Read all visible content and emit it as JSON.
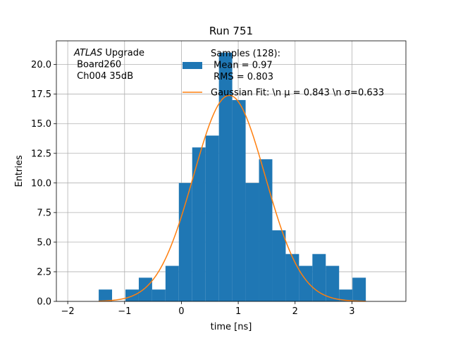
{
  "chart_data": {
    "type": "bar",
    "title": "Run 751",
    "xlabel": "time [ns]",
    "ylabel": "Entries",
    "xlim": [
      -2.2,
      3.95
    ],
    "ylim": [
      0,
      22
    ],
    "grid": true,
    "x_ticks": [
      -2,
      -1,
      0,
      1,
      2,
      3
    ],
    "x_tick_labels": [
      "−2",
      "−1",
      "0",
      "1",
      "2",
      "3"
    ],
    "y_ticks": [
      0,
      2.5,
      5,
      7.5,
      10,
      12.5,
      15,
      17.5,
      20
    ],
    "y_tick_labels": [
      "0.0",
      "2.5",
      "5.0",
      "7.5",
      "10.0",
      "12.5",
      "15.0",
      "17.5",
      "20.0"
    ],
    "histogram": {
      "color": "#1f77b4",
      "bin_edges": [
        -1.455,
        -1.22,
        -0.985,
        -0.75,
        -0.515,
        -0.28,
        -0.045,
        0.19,
        0.425,
        0.66,
        0.895,
        1.13,
        1.365,
        1.6,
        1.835,
        2.07,
        2.305,
        2.54,
        2.775,
        3.01,
        3.245
      ],
      "counts": [
        1,
        0,
        1,
        2,
        1,
        3,
        10,
        13,
        14,
        21,
        17,
        10,
        12,
        6,
        4,
        3,
        4,
        3,
        1,
        2
      ]
    },
    "gaussian_fit": {
      "color": "#ff7f0e",
      "mu": 0.843,
      "sigma": 0.633,
      "amplitude": 17.4,
      "x_range": [
        -1.455,
        3.245
      ]
    },
    "annotation": {
      "lines": [
        {
          "italic": "ATLAS",
          "rest": " Upgrade"
        },
        {
          "italic": "",
          "rest": " Board260"
        },
        {
          "italic": "",
          "rest": " Ch004 35dB"
        }
      ]
    },
    "legend": {
      "placement": "top-right",
      "entries": [
        {
          "kind": "patch",
          "color": "#1f77b4",
          "lines": [
            "Samples (128):",
            " Mean = 0.97",
            " RMS = 0.803"
          ]
        },
        {
          "kind": "line",
          "color": "#ff7f0e",
          "lines": [
            "Gaussian Fit: \\n μ = 0.843 \\n σ=0.633"
          ]
        }
      ]
    }
  }
}
